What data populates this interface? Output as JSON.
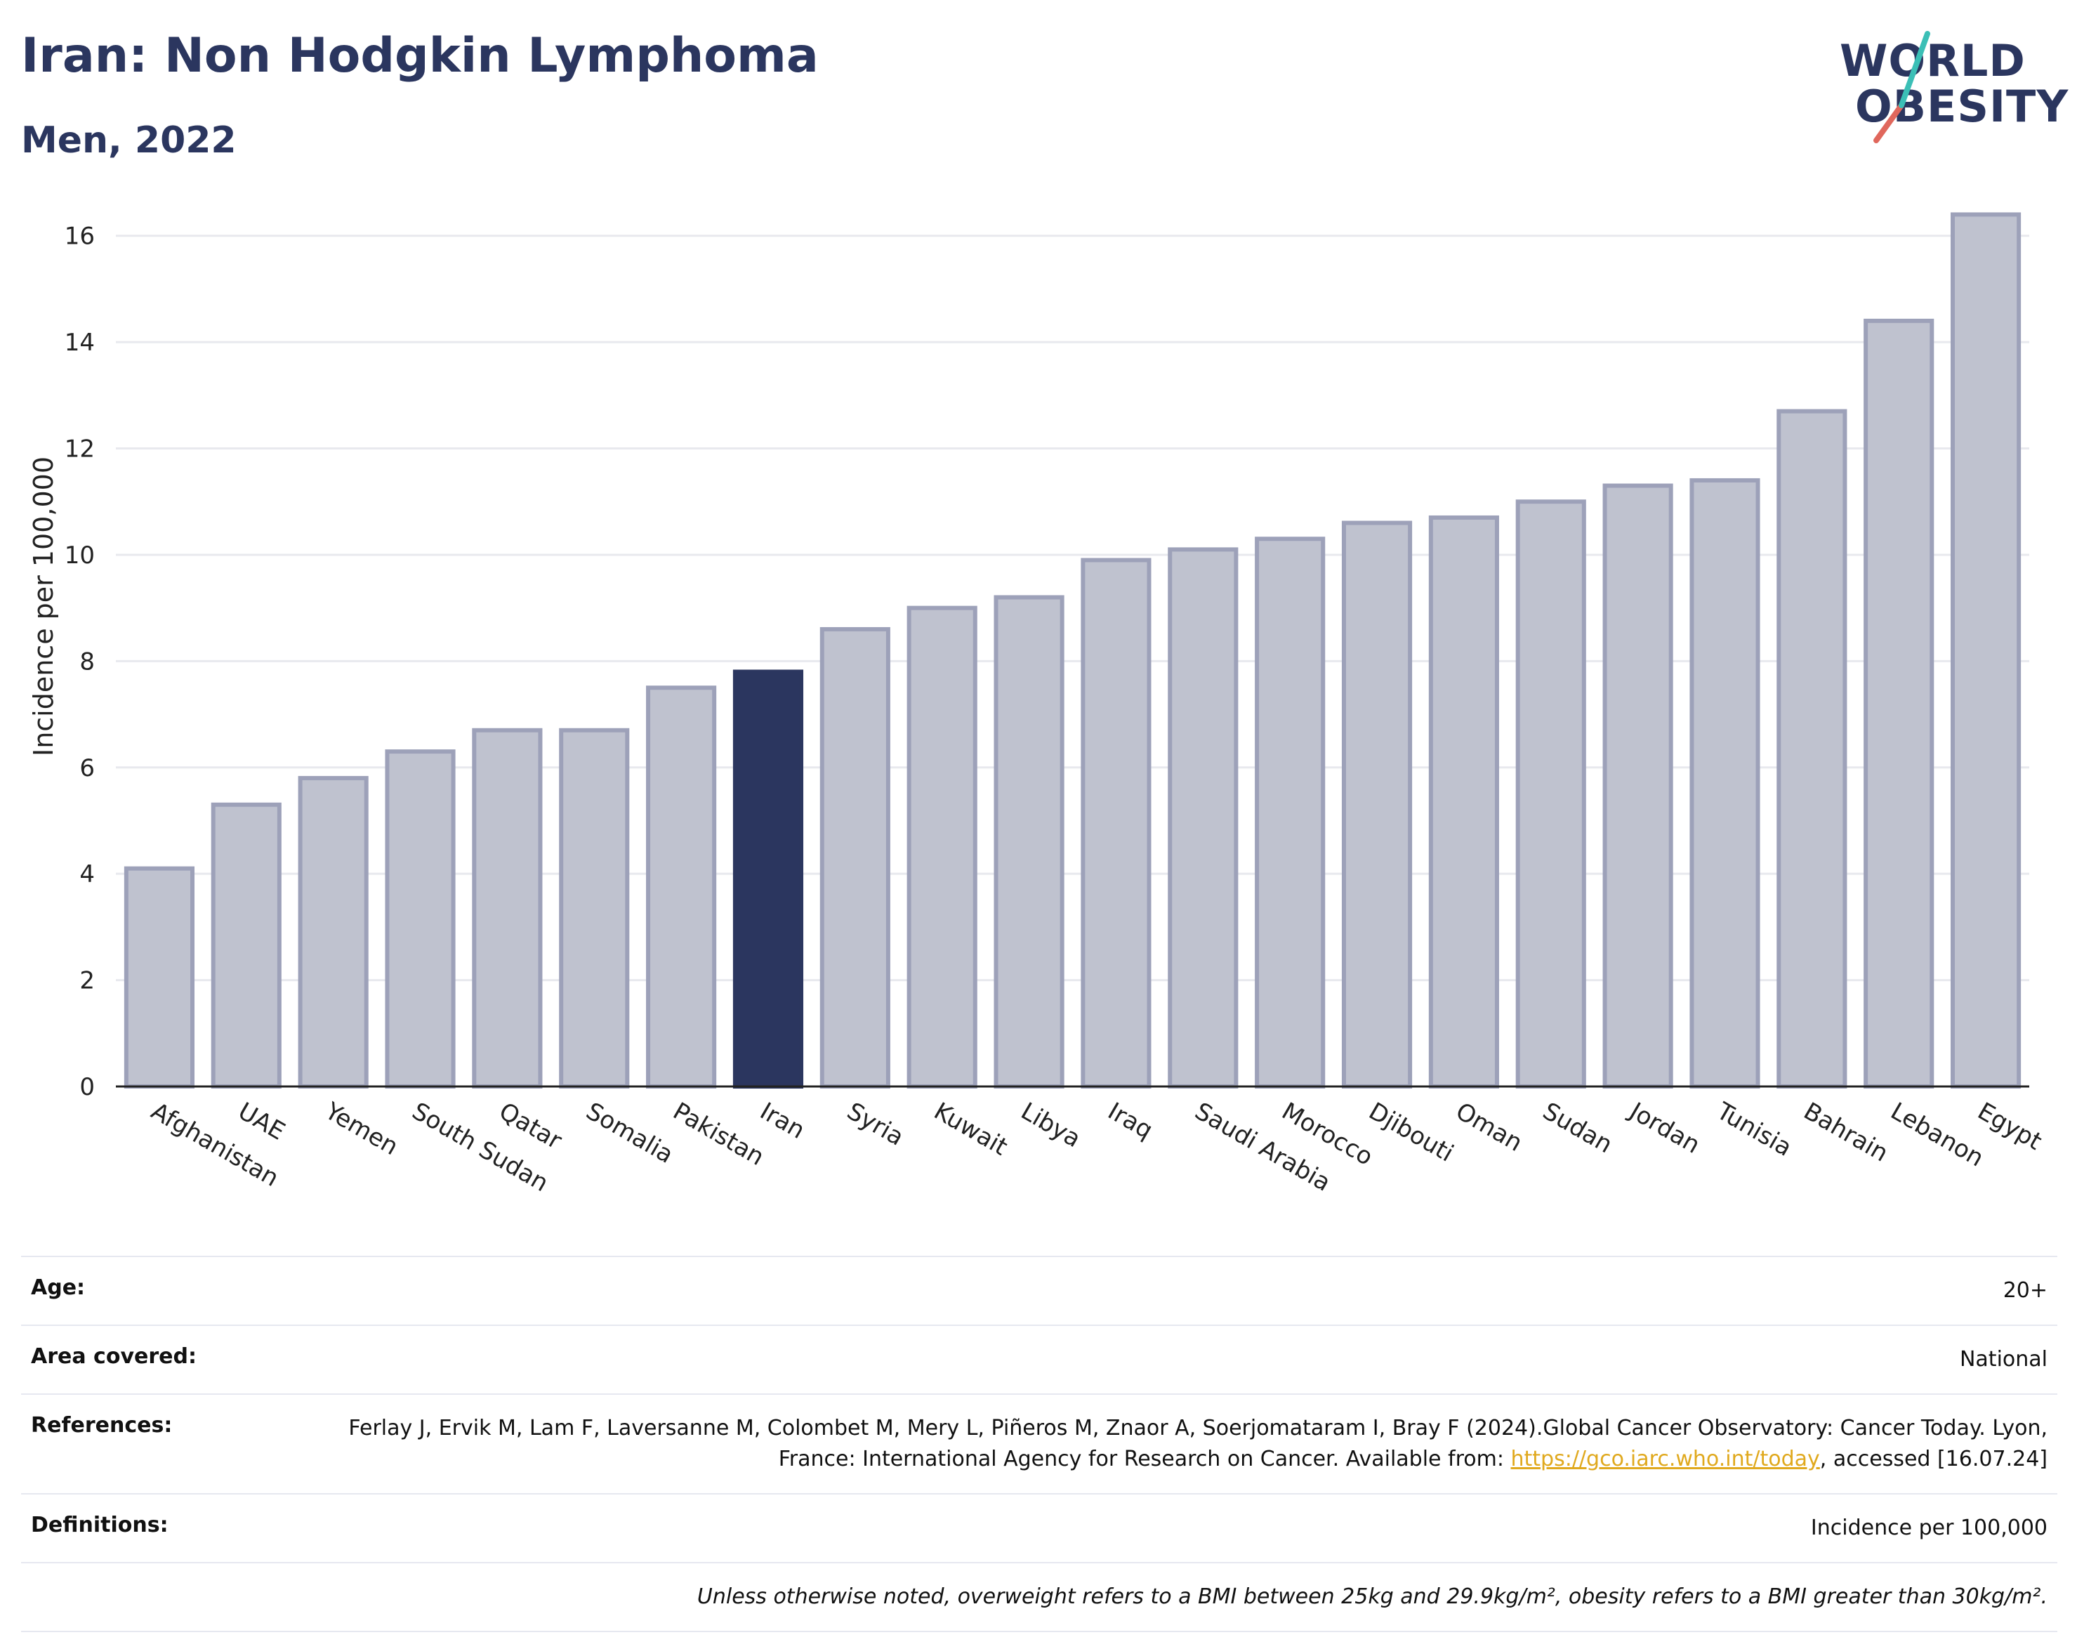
{
  "header": {
    "title": "Iran: Non Hodgkin Lymphoma",
    "subtitle": "Men, 2022"
  },
  "logo": {
    "line1": "WORLD",
    "line2": "OBESITY"
  },
  "colors": {
    "highlight": "#2b365f",
    "bar": "#bfc2cf",
    "bar_border": "#9da1b9",
    "grid": "#e8e9ee",
    "link": "#e0a91e"
  },
  "chart_data": {
    "type": "bar",
    "ylabel": "Incidence per 100,000",
    "ylim": [
      0,
      17
    ],
    "yticks": [
      0,
      2,
      4,
      6,
      8,
      10,
      12,
      14,
      16
    ],
    "grid": true,
    "highlight": "Iran",
    "categories": [
      "Afghanistan",
      "UAE",
      "Yemen",
      "South Sudan",
      "Qatar",
      "Somalia",
      "Pakistan",
      "Iran",
      "Syria",
      "Kuwait",
      "Libya",
      "Iraq",
      "Saudi Arabia",
      "Morocco",
      "Djibouti",
      "Oman",
      "Sudan",
      "Jordan",
      "Tunisia",
      "Bahrain",
      "Lebanon",
      "Egypt"
    ],
    "values": [
      4.1,
      5.3,
      5.8,
      6.3,
      6.7,
      6.7,
      7.5,
      7.8,
      8.6,
      9.0,
      9.2,
      9.9,
      10.1,
      10.3,
      10.6,
      10.7,
      11.0,
      11.3,
      11.4,
      12.7,
      14.4,
      16.4
    ]
  },
  "info": {
    "age_label": "Age:",
    "age_value": "20+",
    "area_label": "Area covered:",
    "area_value": "National",
    "references_label": "References:",
    "references_text1": "Ferlay J, Ervik M, Lam F, Laversanne M, Colombet M, Mery L, Piñeros M, Znaor A, Soerjomataram I, Bray F (2024).Global Cancer Observatory: Cancer Today. Lyon, France: International Agency for Research on Cancer. Available from: ",
    "references_link": "https://gco.iarc.who.int/today",
    "references_text2": ", accessed [16.07.24]",
    "definitions_label": "Definitions:",
    "definitions_value": "Incidence per 100,000",
    "note": "Unless otherwise noted, overweight refers to a BMI between 25kg and 29.9kg/m², obesity refers to a BMI greater than 30kg/m²."
  }
}
